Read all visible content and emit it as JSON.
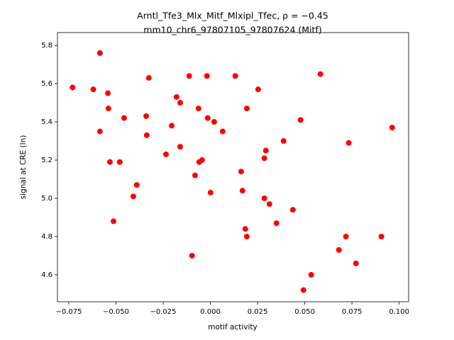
{
  "chart_data": {
    "type": "scatter",
    "title": "Arntl_Tfe3_Mlx_Mitf_Mlxipl_Tfec, ρ = −0.45",
    "subtitle": "mm10_chr6_97807105_97807624 (Mitf)",
    "x_label": "motif activity",
    "y_label": "signal at CRE (ln)",
    "color": "#ff0000",
    "x": [
      -0.073,
      -0.062,
      -0.0585,
      -0.0543,
      -0.054,
      -0.0585,
      -0.0532,
      -0.048,
      -0.0457,
      -0.0513,
      -0.0408,
      -0.039,
      -0.034,
      -0.0337,
      -0.0326,
      -0.0235,
      -0.0205,
      -0.0179,
      -0.016,
      -0.016,
      -0.0112,
      -0.0097,
      -0.0081,
      -0.0063,
      -0.0059,
      -0.0044,
      -0.0018,
      -0.0014,
      0.0001,
      0.002,
      0.0065,
      0.0132,
      0.0163,
      0.017,
      0.0185,
      0.0193,
      0.0193,
      0.0253,
      0.0286,
      0.0294,
      0.0286,
      0.0313,
      0.035,
      0.0388,
      0.0437,
      0.0478,
      0.0493,
      0.0534,
      0.0583,
      0.0681,
      0.0718,
      0.0733,
      0.0771,
      0.0906,
      0.0963
    ],
    "values": [
      5.58,
      5.57,
      5.76,
      5.55,
      5.47,
      5.35,
      5.19,
      5.19,
      5.42,
      4.88,
      5.01,
      5.07,
      5.43,
      5.33,
      5.63,
      5.23,
      5.38,
      5.53,
      5.5,
      5.27,
      5.64,
      4.7,
      5.12,
      5.47,
      5.19,
      5.2,
      5.64,
      5.42,
      5.03,
      5.4,
      5.35,
      5.64,
      5.14,
      5.04,
      4.84,
      4.8,
      5.47,
      5.57,
      5.21,
      5.25,
      5.0,
      4.97,
      4.87,
      5.3,
      4.94,
      5.41,
      4.52,
      4.6,
      5.65,
      4.73,
      4.8,
      5.29,
      4.66,
      4.8,
      5.37
    ],
    "xlim": [
      -0.081,
      0.105
    ],
    "ylim": [
      4.459,
      5.867
    ],
    "xticks": [
      {
        "value": -0.075,
        "label": "−0.075"
      },
      {
        "value": -0.05,
        "label": "−0.050"
      },
      {
        "value": -0.025,
        "label": "−0.025"
      },
      {
        "value": 0,
        "label": "0.000"
      },
      {
        "value": 0.025,
        "label": "0.025"
      },
      {
        "value": 0.05,
        "label": "0.050"
      },
      {
        "value": 0.075,
        "label": "0.075"
      },
      {
        "value": 0.1,
        "label": "0.100"
      }
    ],
    "yticks": [
      4.6,
      4.8,
      {
        "value": 5,
        "label": "5.0"
      },
      5.2,
      5.4,
      5.6,
      5.8
    ]
  }
}
